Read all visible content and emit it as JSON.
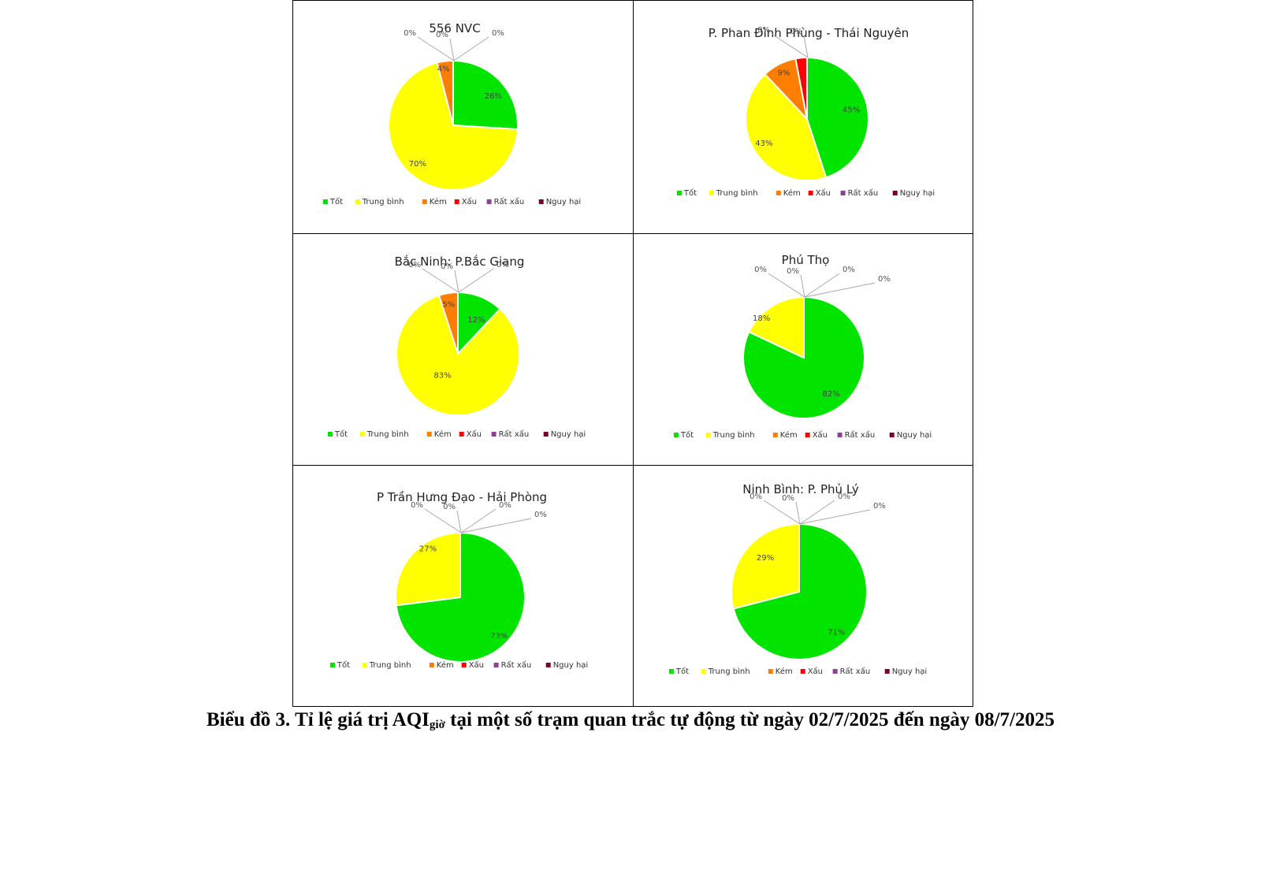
{
  "colors": {
    "Tốt": "#00e400",
    "Trung bình": "#ffff00",
    "Kém": "#ff7e00",
    "Xấu": "#ff0000",
    "Rất xấu": "#8f3f97",
    "Nguy hại": "#7e0023"
  },
  "chart_data": [
    {
      "type": "pie",
      "title": "556 NVC",
      "categories": [
        "Tốt",
        "Trung bình",
        "Kém",
        "Xấu",
        "Rất xấu",
        "Nguy hại"
      ],
      "values": [
        26,
        70,
        4,
        0,
        0,
        0
      ],
      "labels": [
        "26%",
        "70%",
        "4%",
        "0%",
        "0%",
        "0%"
      ],
      "legend": "bottom"
    },
    {
      "type": "pie",
      "title": "P. Phan Đình Phùng - Thái Nguyên",
      "categories": [
        "Tốt",
        "Trung bình",
        "Kém",
        "Xấu",
        "Rất xấu",
        "Nguy hại"
      ],
      "values": [
        45,
        43,
        9,
        3,
        0,
        0
      ],
      "labels": [
        "45%",
        "43%",
        "9%",
        "3%",
        "0%",
        "0%"
      ],
      "legend": "bottom"
    },
    {
      "type": "pie",
      "title": "Bắc Ninh: P.Bắc Giang",
      "categories": [
        "Tốt",
        "Trung bình",
        "Kém",
        "Xấu",
        "Rất xấu",
        "Nguy hại"
      ],
      "values": [
        12,
        83,
        5,
        0,
        0,
        0
      ],
      "labels": [
        "12%",
        "83%",
        "5%",
        "0%",
        "0%",
        "0%"
      ],
      "legend": "bottom"
    },
    {
      "type": "pie",
      "title": "Phú Thọ",
      "categories": [
        "Tốt",
        "Trung bình",
        "Kém",
        "Xấu",
        "Rất xấu",
        "Nguy hại"
      ],
      "values": [
        82,
        18,
        0,
        0,
        0,
        0
      ],
      "labels": [
        "82%",
        "18%",
        "0%",
        "0%",
        "0%",
        "0%"
      ],
      "legend": "bottom"
    },
    {
      "type": "pie",
      "title": "P Trần Hưng Đạo - Hải Phòng",
      "categories": [
        "Tốt",
        "Trung bình",
        "Kém",
        "Xấu",
        "Rất xấu",
        "Nguy hại"
      ],
      "values": [
        73,
        27,
        0,
        0,
        0,
        0
      ],
      "labels": [
        "73%",
        "27%",
        "0%",
        "0%",
        "0%",
        "0%"
      ],
      "legend": "bottom"
    },
    {
      "type": "pie",
      "title": "Ninh Bình: P. Phủ Lý",
      "categories": [
        "Tốt",
        "Trung bình",
        "Kém",
        "Xấu",
        "Rất xấu",
        "Nguy hại"
      ],
      "values": [
        71,
        29,
        0,
        0,
        0,
        0
      ],
      "labels": [
        "71%",
        "29%",
        "0%",
        "0%",
        "0%",
        "0%"
      ],
      "legend": "bottom"
    }
  ],
  "caption": {
    "main": "Biểu đồ 3.  Tỉ lệ giá trị AQI",
    "sub": "giờ",
    "rest": " tại một số trạm quan trắc tự động từ ngày 02/7/2025 đến ngày 08/7/2025"
  }
}
